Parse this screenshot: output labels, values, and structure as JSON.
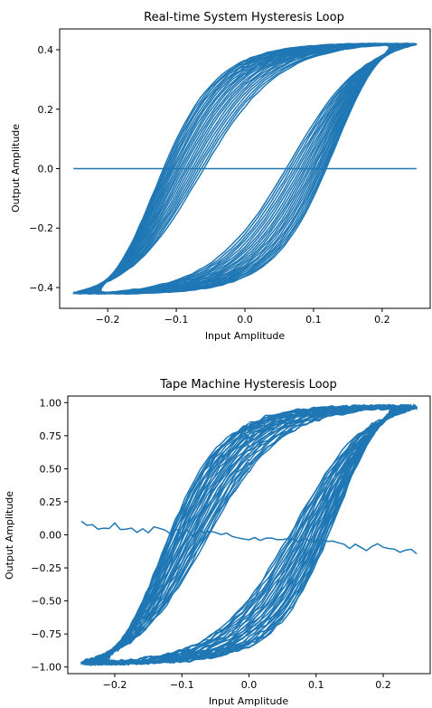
{
  "chart_data": [
    {
      "type": "line",
      "title": "Real-time System Hysteresis Loop",
      "xlabel": "Input Amplitude",
      "ylabel": "Output Amplitude",
      "xlim": [
        -0.27,
        0.27
      ],
      "ylim": [
        -0.47,
        0.47
      ],
      "xticks": [
        -0.2,
        -0.1,
        0.0,
        0.1,
        0.2
      ],
      "xtick_labels": [
        "−0.2",
        "−0.1",
        "0.0",
        "0.1",
        "0.2"
      ],
      "yticks": [
        -0.4,
        -0.2,
        0.0,
        0.2,
        0.4
      ],
      "ytick_labels": [
        "−0.4",
        "−0.2",
        "0.0",
        "0.2",
        "0.4"
      ],
      "color": "#1f77b4",
      "grid": false,
      "series": [
        {
          "x_range": [
            -0.25,
            0.25
          ],
          "output_saturation": [
            -0.42,
            0.42
          ],
          "inner_loop_range": [
            -0.21,
            0.21
          ],
          "cycles": 22,
          "baseline_y": 0.0
        }
      ]
    },
    {
      "type": "line",
      "title": "Tape Machine Hysteresis Loop",
      "xlabel": "Input Amplitude",
      "ylabel": "Output Amplitude",
      "xlim": [
        -0.27,
        0.27
      ],
      "ylim": [
        -1.05,
        1.05
      ],
      "xticks": [
        -0.2,
        -0.1,
        0.0,
        0.1,
        0.2
      ],
      "xtick_labels": [
        "−0.2",
        "−0.1",
        "0.0",
        "0.1",
        "0.2"
      ],
      "yticks": [
        -1.0,
        -0.75,
        -0.5,
        -0.25,
        0.0,
        0.25,
        0.5,
        0.75,
        1.0
      ],
      "ytick_labels": [
        "−1.00",
        "−0.75",
        "−0.50",
        "−0.25",
        "0.00",
        "0.25",
        "0.50",
        "0.75",
        "1.00"
      ],
      "color": "#1f77b4",
      "grid": false,
      "series": [
        {
          "x_range": [
            -0.25,
            0.25
          ],
          "output_saturation": [
            -0.97,
            0.97
          ],
          "inner_loop_range": [
            -0.21,
            0.21
          ],
          "cycles": 30,
          "baseline_y": 0.08
        }
      ]
    }
  ]
}
